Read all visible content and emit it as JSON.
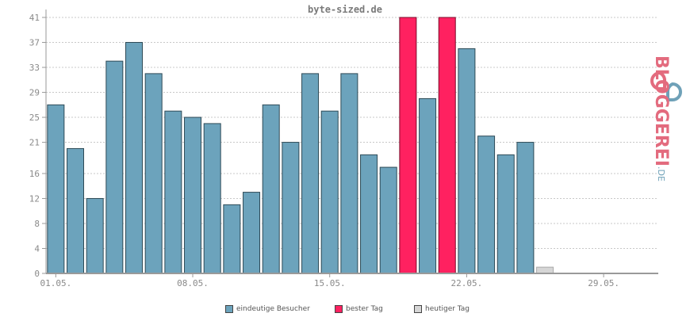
{
  "colors": {
    "bar": "#6ca3bc",
    "best": "#ff2160",
    "today": "#d6d6d6",
    "grid": "#c8c8c8",
    "axis": "#999999",
    "logo_pink": "#e36b7e",
    "logo_blue": "#6fa1b8"
  },
  "chart_data": {
    "type": "bar",
    "title": "byte-sized.de",
    "y_ticks": [
      0,
      4,
      8,
      12,
      16,
      21,
      25,
      29,
      33,
      37,
      41
    ],
    "ylim": [
      0,
      41
    ],
    "x_tick_labels": [
      "01.05.",
      "08.05.",
      "15.05.",
      "22.05.",
      "29.05."
    ],
    "x_tick_days": [
      1,
      8,
      15,
      22,
      29
    ],
    "days": [
      1,
      2,
      3,
      4,
      5,
      6,
      7,
      8,
      9,
      10,
      11,
      12,
      13,
      14,
      15,
      16,
      17,
      18,
      19,
      20,
      21,
      22,
      23,
      24,
      25,
      26,
      27,
      28,
      29,
      30,
      31
    ],
    "values": [
      27,
      20,
      12,
      34,
      37,
      32,
      26,
      25,
      24,
      11,
      13,
      27,
      21,
      32,
      26,
      32,
      19,
      17,
      41,
      28,
      41,
      36,
      22,
      19,
      21,
      1,
      0,
      0,
      0,
      0,
      0
    ],
    "kinds": [
      "normal",
      "normal",
      "normal",
      "normal",
      "normal",
      "normal",
      "normal",
      "normal",
      "normal",
      "normal",
      "normal",
      "normal",
      "normal",
      "normal",
      "normal",
      "normal",
      "normal",
      "normal",
      "best",
      "normal",
      "best",
      "normal",
      "normal",
      "normal",
      "normal",
      "today",
      "none",
      "none",
      "none",
      "none",
      "none"
    ],
    "grid": true,
    "legend_placement": "bottom-center"
  },
  "legend": {
    "items": [
      {
        "label": "eindeutige Besucher",
        "color": "#6ca3bc"
      },
      {
        "label": "bester Tag",
        "color": "#ff2160"
      },
      {
        "label": "heutiger Tag",
        "color": "#d6d6d6"
      }
    ]
  },
  "logo": {
    "name": "BLOGGEREI",
    "suffix": ".DE",
    "icon": "bloggerei-logo-icon"
  }
}
